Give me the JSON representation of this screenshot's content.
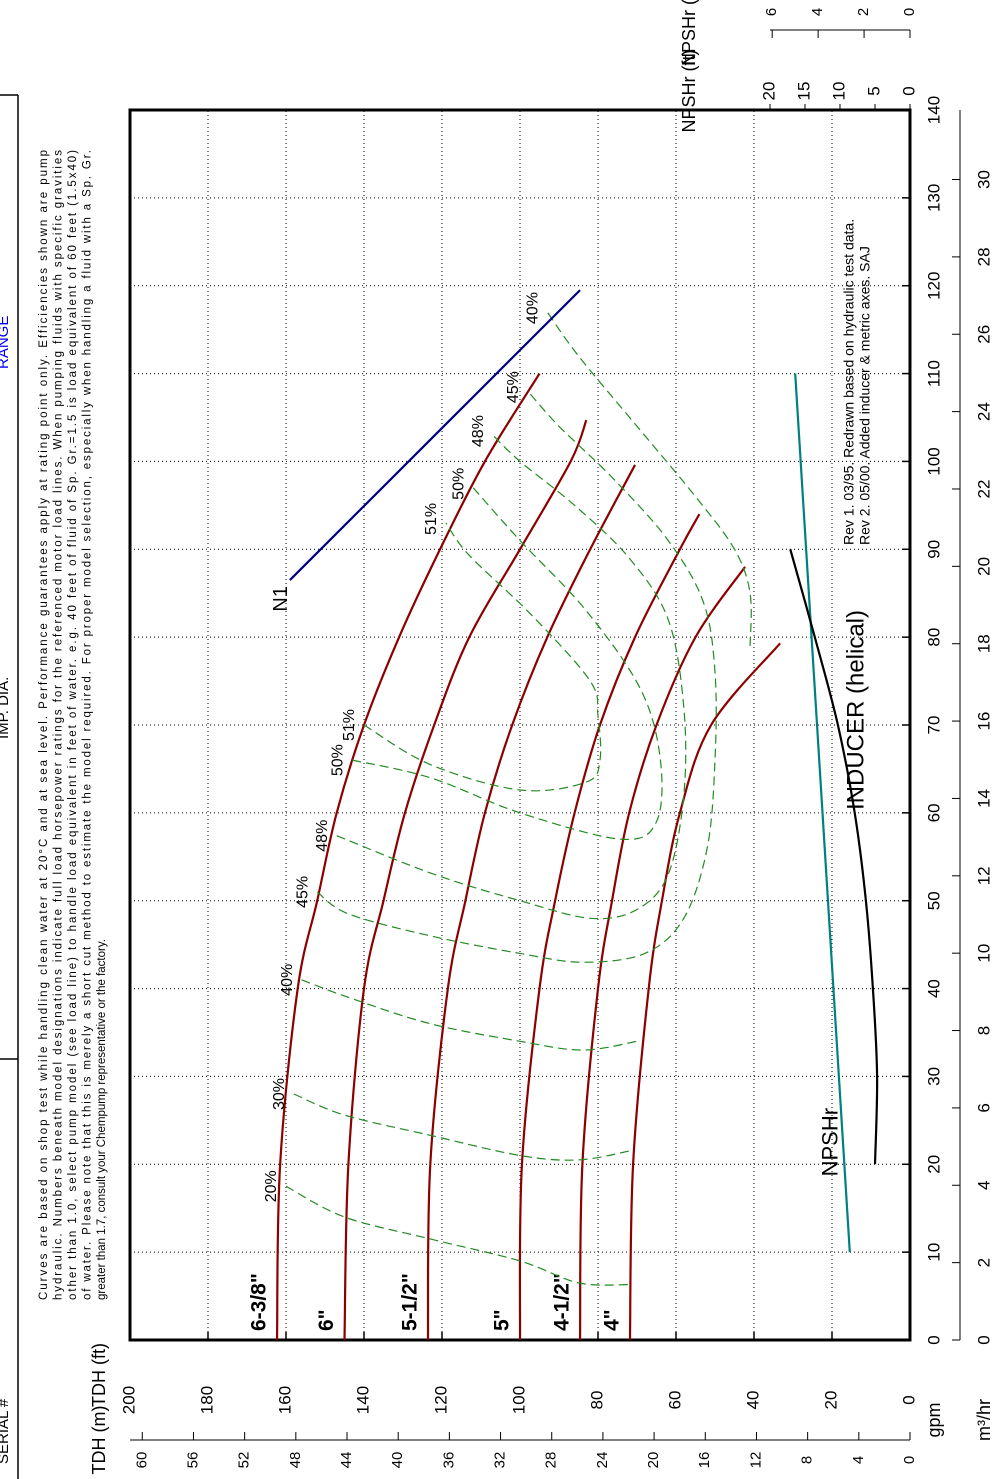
{
  "header": {
    "serial": "SERIAL #",
    "imp_dia": "IMP. DIA.",
    "range": "RANGE"
  },
  "notes": [
    "Curves are based on shop test while handling clean water at 20°C and at sea level.  Performance guarantees apply at rating point only.  Efficiencies shown are pump",
    "hydraulic. Numbers beneath model designations indicate full load horsepower ratings for the referenced motor load lines.  When pumping fluids with specific gravities",
    "other than 1.0, select pump model (see load line) to handle load equivalent in feet of water. e.g. 40 feet of fluid of Sp. Gr.=1.5 is load equivalent of 60 feet (1.5x40)",
    "of water. Please note that this is merely a short cut method to estimate the model required. For proper model selection, especially when handling a fluid with a Sp. Gr.",
    "greater than 1.7, consult your Chempump representative or the factory."
  ],
  "revisions": [
    "Rev 1.  03/95.  Redrawn based on hydraulic test data.",
    "Rev 2.  05/00.  Added inducer & metric axes.  SAJ"
  ],
  "chart_data": {
    "type": "line",
    "grid": true,
    "xlabel": "gpm",
    "xlim": [
      0,
      140
    ],
    "xticks": [
      0,
      10,
      20,
      30,
      40,
      50,
      60,
      70,
      80,
      90,
      100,
      110,
      120,
      130,
      140
    ],
    "x2label": "m³/hr",
    "x2lim": [
      0,
      31.797
    ],
    "x2ticks": [
      0,
      2,
      4,
      6,
      8,
      10,
      12,
      14,
      16,
      18,
      20,
      22,
      24,
      26,
      28,
      30
    ],
    "ylabel": "TDH (ft)",
    "ylim": [
      0,
      200
    ],
    "yticks": [
      0,
      20,
      40,
      60,
      80,
      100,
      120,
      140,
      160,
      180,
      200
    ],
    "ylabel_m": "TDH (m)",
    "ylim_m": [
      0,
      60.96
    ],
    "yticks_m": [
      0,
      4,
      8,
      12,
      16,
      20,
      24,
      28,
      32,
      36,
      40,
      44,
      48,
      52,
      56,
      60
    ],
    "y2label": "NPSHr (ft)",
    "y2lim": [
      0,
      20
    ],
    "y2ticks": [
      0,
      5,
      10,
      15,
      20
    ],
    "y2label_m": "NPSHr (m)",
    "y2lim_m": [
      0,
      6.096
    ],
    "y2ticks_m": [
      0,
      2,
      4,
      6
    ],
    "series": [
      {
        "name": "6-3/8\"",
        "color": "#8b0000",
        "x": [
          0,
          20,
          40,
          50,
          60,
          70,
          80,
          90,
          100,
          110
        ],
        "values": [
          162.3,
          161.5,
          157,
          152,
          147,
          140,
          131,
          120.5,
          109,
          95
        ]
      },
      {
        "name": "6\"",
        "color": "#8b0000",
        "x": [
          0,
          20,
          40,
          50,
          60,
          70,
          80,
          90,
          100,
          104.7
        ],
        "values": [
          145,
          144,
          140,
          135,
          129.5,
          122,
          113,
          100,
          87,
          83
        ]
      },
      {
        "name": "5-1/2\"",
        "color": "#8b0000",
        "x": [
          0,
          20,
          40,
          50,
          60,
          70,
          80,
          90,
          99.6
        ],
        "values": [
          123.6,
          123,
          118.5,
          114,
          109,
          102,
          93,
          82,
          70.5
        ]
      },
      {
        "name": "5\"",
        "color": "#8b0000",
        "x": [
          0,
          20,
          40,
          50,
          60,
          70,
          80,
          90,
          94
        ],
        "values": [
          100,
          99.5,
          95,
          91,
          86,
          79.5,
          70.5,
          59,
          54
        ]
      },
      {
        "name": "4-1/2\"",
        "color": "#8b0000",
        "x": [
          0,
          20,
          40,
          50,
          60,
          70,
          80,
          88
        ],
        "values": [
          84.6,
          84,
          80,
          76.4,
          72,
          65,
          55,
          42.3
        ]
      },
      {
        "name": "4\"",
        "color": "#8b0000",
        "x": [
          0,
          20,
          40,
          50,
          60,
          70,
          79.3
        ],
        "values": [
          71.8,
          71,
          67,
          63.6,
          59,
          51,
          33.3
        ]
      },
      {
        "name": "20%",
        "color": "#228b22",
        "dash": true,
        "x": [
          17.5,
          14,
          11.5,
          9,
          6.5,
          6.3
        ],
        "values": [
          160,
          145,
          123,
          100,
          85,
          72
        ]
      },
      {
        "name": "30%",
        "color": "#228b22",
        "dash": true,
        "x": [
          28,
          25.6,
          23.3,
          21,
          20.5,
          21.6
        ],
        "values": [
          158,
          145,
          123,
          100,
          85,
          71
        ]
      },
      {
        "name": "40%",
        "color": "#228b22",
        "dash": true,
        "x": [
          41,
          39,
          36,
          34,
          33,
          34
        ],
        "values": [
          156,
          144,
          123,
          100,
          84,
          70
        ]
      },
      {
        "name": "40%",
        "color": "#228b22",
        "dash": true,
        "x": [
          79,
          85,
          90,
          96,
          104,
          112,
          117
        ],
        "values": [
          41,
          41,
          45,
          55,
          70,
          85,
          93
        ]
      },
      {
        "name": "45%",
        "color": "#228b22",
        "dash": true,
        "x": [
          51,
          48.5,
          46,
          44,
          43,
          44,
          48,
          56,
          66,
          76,
          84,
          91,
          98,
          104,
          108
        ],
        "values": [
          152,
          144,
          123,
          100,
          84,
          68,
          58,
          52,
          50,
          50,
          53,
          62,
          76,
          90,
          98
        ]
      },
      {
        "name": "48%",
        "color": "#228b22",
        "dash": true,
        "x": [
          57.4,
          53,
          50,
          48,
          49,
          53,
          62,
          72,
          82,
          89,
          95,
          100,
          103
        ],
        "values": [
          147,
          122,
          100,
          82,
          70,
          62,
          58,
          58,
          62,
          72,
          86,
          100,
          107
        ]
      },
      {
        "name": "50%",
        "color": "#228b22",
        "dash": true,
        "x": [
          66,
          64,
          60,
          57,
          59,
          66,
          74,
          83,
          91,
          97
        ],
        "values": [
          143,
          123,
          100,
          74,
          65,
          64,
          69,
          83,
          100,
          112
        ]
      },
      {
        "name": "51%",
        "color": "#228b22",
        "dash": true,
        "x": [
          70,
          65.5,
          62.6,
          63.5,
          66,
          71,
          75,
          82.5,
          89.3,
          93
        ],
        "values": [
          140,
          123,
          100,
          83,
          79.5,
          80,
          82,
          97,
          113,
          119
        ]
      },
      {
        "name": "N1",
        "color": "#000080",
        "x": [
          86.5,
          119.5
        ],
        "values": [
          159,
          84.6
        ]
      },
      {
        "name": "NPSHr",
        "color": "#008080",
        "axis": "y2",
        "x": [
          10,
          60,
          110
        ],
        "values": [
          8.6,
          12.5,
          16.4
        ]
      },
      {
        "name": "INDUCER (helical)",
        "color": "#000000",
        "axis": "y2",
        "x": [
          20,
          30,
          40,
          50,
          60,
          70,
          80,
          90
        ],
        "values": [
          5,
          4.7,
          5.3,
          6.3,
          7.9,
          10.3,
          13.6,
          17.1
        ]
      }
    ]
  }
}
